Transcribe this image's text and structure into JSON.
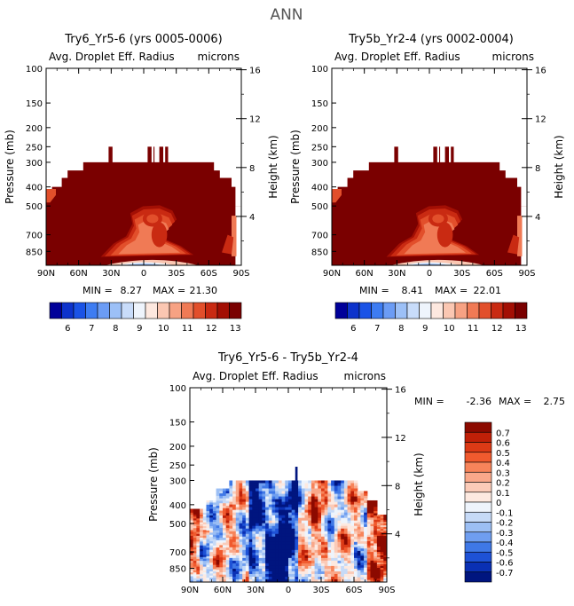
{
  "figure": {
    "title": "ANN"
  },
  "chart_data": [
    {
      "type": "heatmap",
      "title": "Try6_Yr5-6 (yrs 0005-0006)",
      "subtitle_left": "Avg. Droplet Eff. Radius",
      "subtitle_right": "microns",
      "ylabel": "Pressure (mb)",
      "y2label": "Height (km)",
      "x_ticks": [
        "90N",
        "60N",
        "30N",
        "0",
        "30S",
        "60S",
        "90S"
      ],
      "y_ticks": [
        100,
        150,
        200,
        250,
        300,
        400,
        500,
        700,
        850
      ],
      "y2_ticks": [
        16,
        12,
        8,
        4
      ],
      "ylim": [
        100,
        1000
      ],
      "stats": {
        "min_label": "MIN =",
        "min": "8.27",
        "max_label": "MAX =",
        "max": "21.30"
      },
      "colorbar_levels": [
        "6",
        "7",
        "8",
        "9",
        "10",
        "11",
        "12",
        "13"
      ],
      "colorbar_colors": [
        "#000099",
        "#0d33cc",
        "#1a53e6",
        "#3d7cf2",
        "#6b9cf5",
        "#9cc0f7",
        "#c8dcfa",
        "#eef4fc",
        "#fde8df",
        "#fbc7b2",
        "#f7a283",
        "#f07a55",
        "#e24f2b",
        "#c92a12",
        "#a30f04",
        "#7a0000"
      ]
    },
    {
      "type": "heatmap",
      "title": "Try5b_Yr2-4 (yrs 0002-0004)",
      "subtitle_left": "Avg. Droplet Eff. Radius",
      "subtitle_right": "microns",
      "ylabel": "Pressure (mb)",
      "y2label": "Height (km)",
      "x_ticks": [
        "90N",
        "60N",
        "30N",
        "0",
        "30S",
        "60S",
        "90S"
      ],
      "y_ticks": [
        100,
        150,
        200,
        250,
        300,
        400,
        500,
        700,
        850
      ],
      "y2_ticks": [
        16,
        12,
        8,
        4
      ],
      "ylim": [
        100,
        1000
      ],
      "stats": {
        "min_label": "MIN =",
        "min": "8.41",
        "max_label": "MAX =",
        "max": "22.01"
      },
      "colorbar_levels": [
        "6",
        "7",
        "8",
        "9",
        "10",
        "11",
        "12",
        "13"
      ],
      "colorbar_colors": [
        "#000099",
        "#0d33cc",
        "#1a53e6",
        "#3d7cf2",
        "#6b9cf5",
        "#9cc0f7",
        "#c8dcfa",
        "#eef4fc",
        "#fde8df",
        "#fbc7b2",
        "#f7a283",
        "#f07a55",
        "#e24f2b",
        "#c92a12",
        "#a30f04",
        "#7a0000"
      ]
    },
    {
      "type": "heatmap",
      "title": "Try6_Yr5-6 - Try5b_Yr2-4",
      "subtitle_left": "Avg. Droplet Eff. Radius",
      "subtitle_right": "microns",
      "ylabel": "Pressure (mb)",
      "y2label": "Height (km)",
      "x_ticks": [
        "90N",
        "60N",
        "30N",
        "0",
        "30S",
        "60S",
        "90S"
      ],
      "y_ticks": [
        100,
        150,
        200,
        250,
        300,
        400,
        500,
        700,
        850
      ],
      "y2_ticks": [
        16,
        12,
        8,
        4
      ],
      "ylim": [
        100,
        1000
      ],
      "stats": {
        "min_label": "MIN =",
        "min": "-2.36",
        "max_label": "MAX =",
        "max": "2.75"
      },
      "colorbar_levels": [
        "0.7",
        "0.6",
        "0.5",
        "0.4",
        "0.3",
        "0.2",
        "0.1",
        "0",
        "-0.1",
        "-0.2",
        "-0.3",
        "-0.4",
        "-0.5",
        "-0.6",
        "-0.7"
      ],
      "colorbar_colors": [
        "#8c0a00",
        "#c02008",
        "#dc3a16",
        "#f05a2e",
        "#f7845a",
        "#f9a88a",
        "#fbcbb8",
        "#fde9e0",
        "#eef4fc",
        "#c6daf7",
        "#9cbff4",
        "#6f9ef0",
        "#3f78e6",
        "#1e52d6",
        "#0a30b4",
        "#00157f"
      ]
    }
  ]
}
